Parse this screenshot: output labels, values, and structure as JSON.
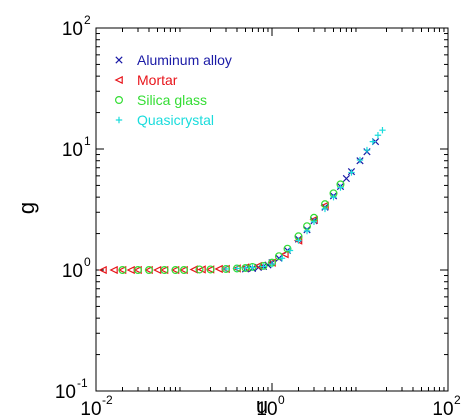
{
  "chart_data": {
    "type": "scatter",
    "title": "",
    "xlabel": "u",
    "ylabel": "g",
    "xscale": "log",
    "yscale": "log",
    "xlim": [
      0.01,
      100
    ],
    "ylim": [
      0.1,
      100
    ],
    "grid": false,
    "legend_position": "top-left",
    "x_ticks": [
      {
        "value": 0.01,
        "base": "10",
        "exp": "-2"
      },
      {
        "value": 1,
        "base": "10",
        "exp": "0"
      },
      {
        "value": 100,
        "base": "10",
        "exp": "2"
      }
    ],
    "y_ticks": [
      {
        "value": 0.1,
        "base": "10",
        "exp": "-1"
      },
      {
        "value": 1,
        "base": "10",
        "exp": "0"
      },
      {
        "value": 10,
        "base": "10",
        "exp": "1"
      },
      {
        "value": 100,
        "base": "10",
        "exp": "2"
      }
    ],
    "series": [
      {
        "name": "Aluminum alloy",
        "marker": "x",
        "color": "#1a1aa6",
        "points": [
          [
            0.5,
            1.02
          ],
          [
            0.6,
            1.03
          ],
          [
            0.7,
            1.05
          ],
          [
            0.8,
            1.07
          ],
          [
            0.9,
            1.1
          ],
          [
            1.0,
            1.15
          ],
          [
            1.2,
            1.25
          ],
          [
            1.5,
            1.45
          ],
          [
            2.0,
            1.8
          ],
          [
            2.5,
            2.15
          ],
          [
            3.0,
            2.55
          ],
          [
            4.0,
            3.3
          ],
          [
            5.0,
            4.1
          ],
          [
            6.0,
            4.9
          ],
          [
            7.0,
            5.7
          ],
          [
            8.0,
            6.5
          ],
          [
            10.0,
            8.0
          ],
          [
            12.0,
            9.5
          ],
          [
            15.0,
            11.5
          ]
        ]
      },
      {
        "name": "Mortar",
        "marker": "triangle-left",
        "color": "#e8141a",
        "points": [
          [
            0.012,
            1.0
          ],
          [
            0.016,
            1.0
          ],
          [
            0.02,
            1.0
          ],
          [
            0.025,
            1.0
          ],
          [
            0.03,
            1.0
          ],
          [
            0.04,
            1.0
          ],
          [
            0.05,
            1.0
          ],
          [
            0.06,
            1.0
          ],
          [
            0.08,
            1.0
          ],
          [
            0.1,
            1.0
          ],
          [
            0.13,
            1.01
          ],
          [
            0.16,
            1.01
          ],
          [
            0.2,
            1.01
          ],
          [
            0.25,
            1.02
          ],
          [
            0.3,
            1.02
          ],
          [
            0.4,
            1.03
          ],
          [
            0.5,
            1.05
          ],
          [
            0.7,
            1.08
          ],
          [
            1.0,
            1.15
          ],
          [
            1.4,
            1.35
          ],
          [
            2.0,
            1.75
          ],
          [
            3.0,
            2.6
          ],
          [
            4.0,
            3.4
          ]
        ]
      },
      {
        "name": "Silica glass",
        "marker": "circle",
        "color": "#33dd33",
        "points": [
          [
            0.02,
            1.0
          ],
          [
            0.03,
            1.0
          ],
          [
            0.04,
            1.0
          ],
          [
            0.06,
            1.0
          ],
          [
            0.08,
            1.0
          ],
          [
            0.1,
            1.0
          ],
          [
            0.15,
            1.01
          ],
          [
            0.2,
            1.01
          ],
          [
            0.3,
            1.02
          ],
          [
            0.4,
            1.03
          ],
          [
            0.5,
            1.04
          ],
          [
            0.6,
            1.06
          ],
          [
            0.8,
            1.08
          ],
          [
            1.0,
            1.15
          ],
          [
            1.2,
            1.3
          ],
          [
            1.5,
            1.5
          ],
          [
            2.0,
            1.9
          ],
          [
            2.5,
            2.3
          ],
          [
            3.0,
            2.7
          ],
          [
            4.0,
            3.5
          ],
          [
            5.0,
            4.3
          ],
          [
            6.0,
            5.1
          ]
        ]
      },
      {
        "name": "Quasicrystal",
        "marker": "plus",
        "color": "#1adcdc",
        "points": [
          [
            0.3,
            1.02
          ],
          [
            0.4,
            1.03
          ],
          [
            0.5,
            1.04
          ],
          [
            0.6,
            1.05
          ],
          [
            0.8,
            1.07
          ],
          [
            1.0,
            1.12
          ],
          [
            1.3,
            1.25
          ],
          [
            1.6,
            1.45
          ],
          [
            2.0,
            1.75
          ],
          [
            2.5,
            2.1
          ],
          [
            3.0,
            2.5
          ],
          [
            4.0,
            3.2
          ],
          [
            5.0,
            4.0
          ],
          [
            6.0,
            4.8
          ],
          [
            8.0,
            6.4
          ],
          [
            10.0,
            8.1
          ],
          [
            12.0,
            9.8
          ],
          [
            14.0,
            11.5
          ],
          [
            16.0,
            13.0
          ],
          [
            18.0,
            14.3
          ]
        ]
      }
    ]
  }
}
